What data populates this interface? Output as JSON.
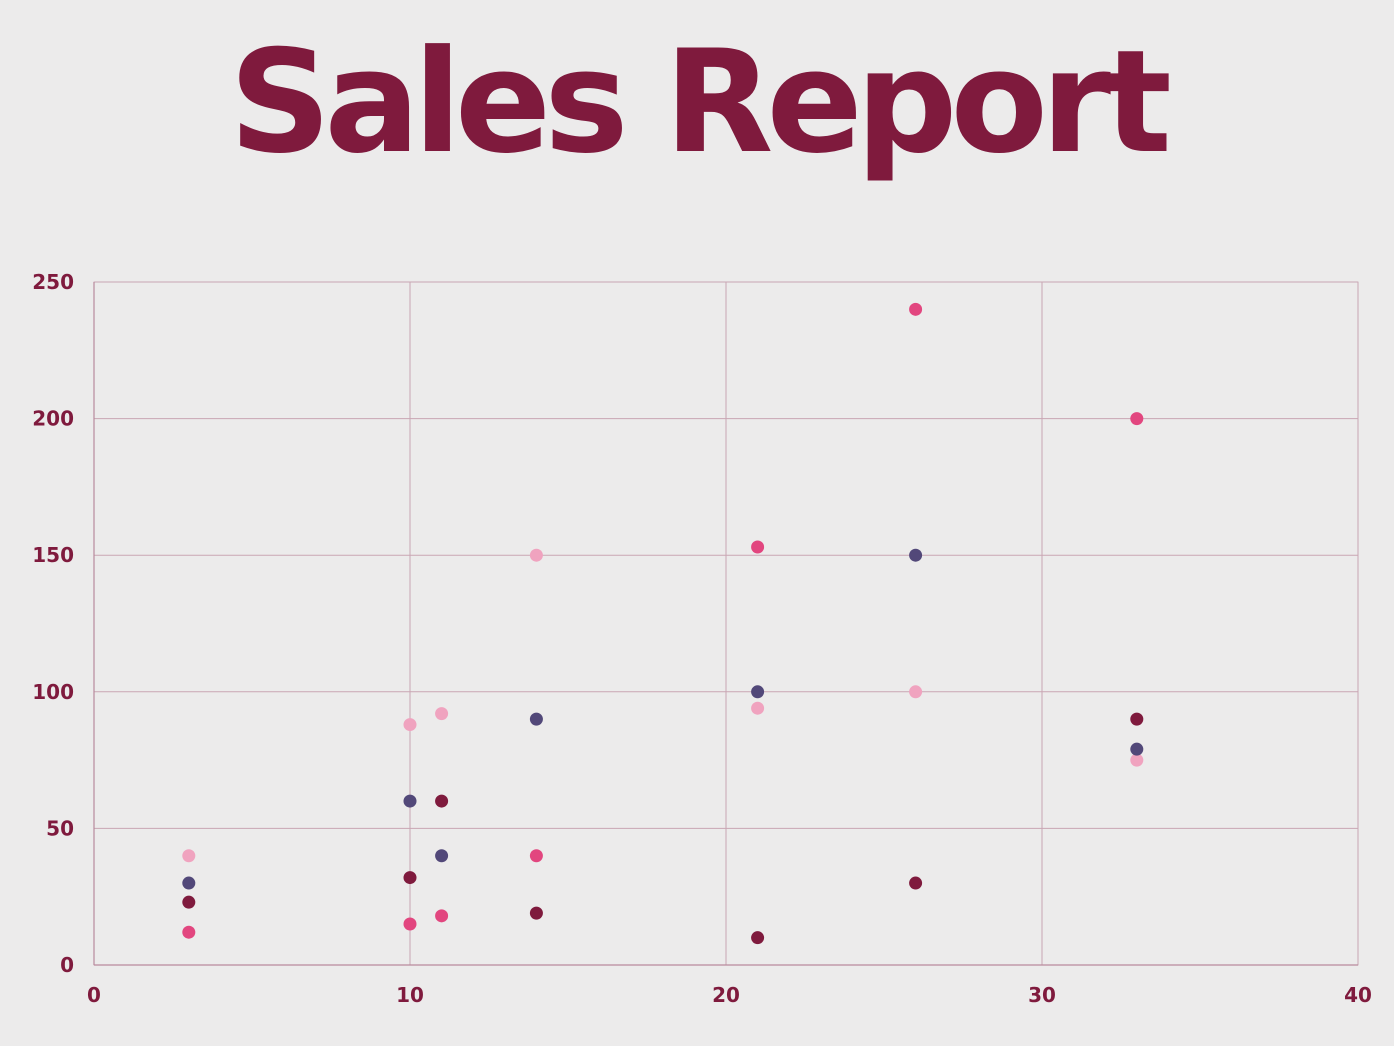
{
  "page": {
    "title": "Sales Report"
  },
  "chart_data": {
    "type": "scatter",
    "title": "Sales Report",
    "xlabel": "",
    "ylabel": "",
    "xlim": [
      0,
      40
    ],
    "ylim": [
      0,
      250
    ],
    "x_ticks": [
      "0",
      "10",
      "20",
      "30",
      "40"
    ],
    "y_ticks": [
      "0",
      "50",
      "100",
      "150",
      "200",
      "250"
    ],
    "grid": true,
    "legend": "none",
    "x": [
      3,
      10,
      11,
      14,
      21,
      26,
      33
    ],
    "series": [
      {
        "color": "#e2467f",
        "values": [
          12,
          15,
          18,
          40,
          153,
          240,
          200
        ]
      },
      {
        "color": "#f0a3bf",
        "values": [
          40,
          88,
          92,
          150,
          94,
          100,
          75
        ]
      },
      {
        "color": "#524879",
        "values": [
          30,
          60,
          40,
          90,
          100,
          150,
          79
        ]
      },
      {
        "color": "#7f1a3d",
        "values": [
          23,
          32,
          60,
          19,
          10,
          30,
          90
        ]
      }
    ]
  }
}
